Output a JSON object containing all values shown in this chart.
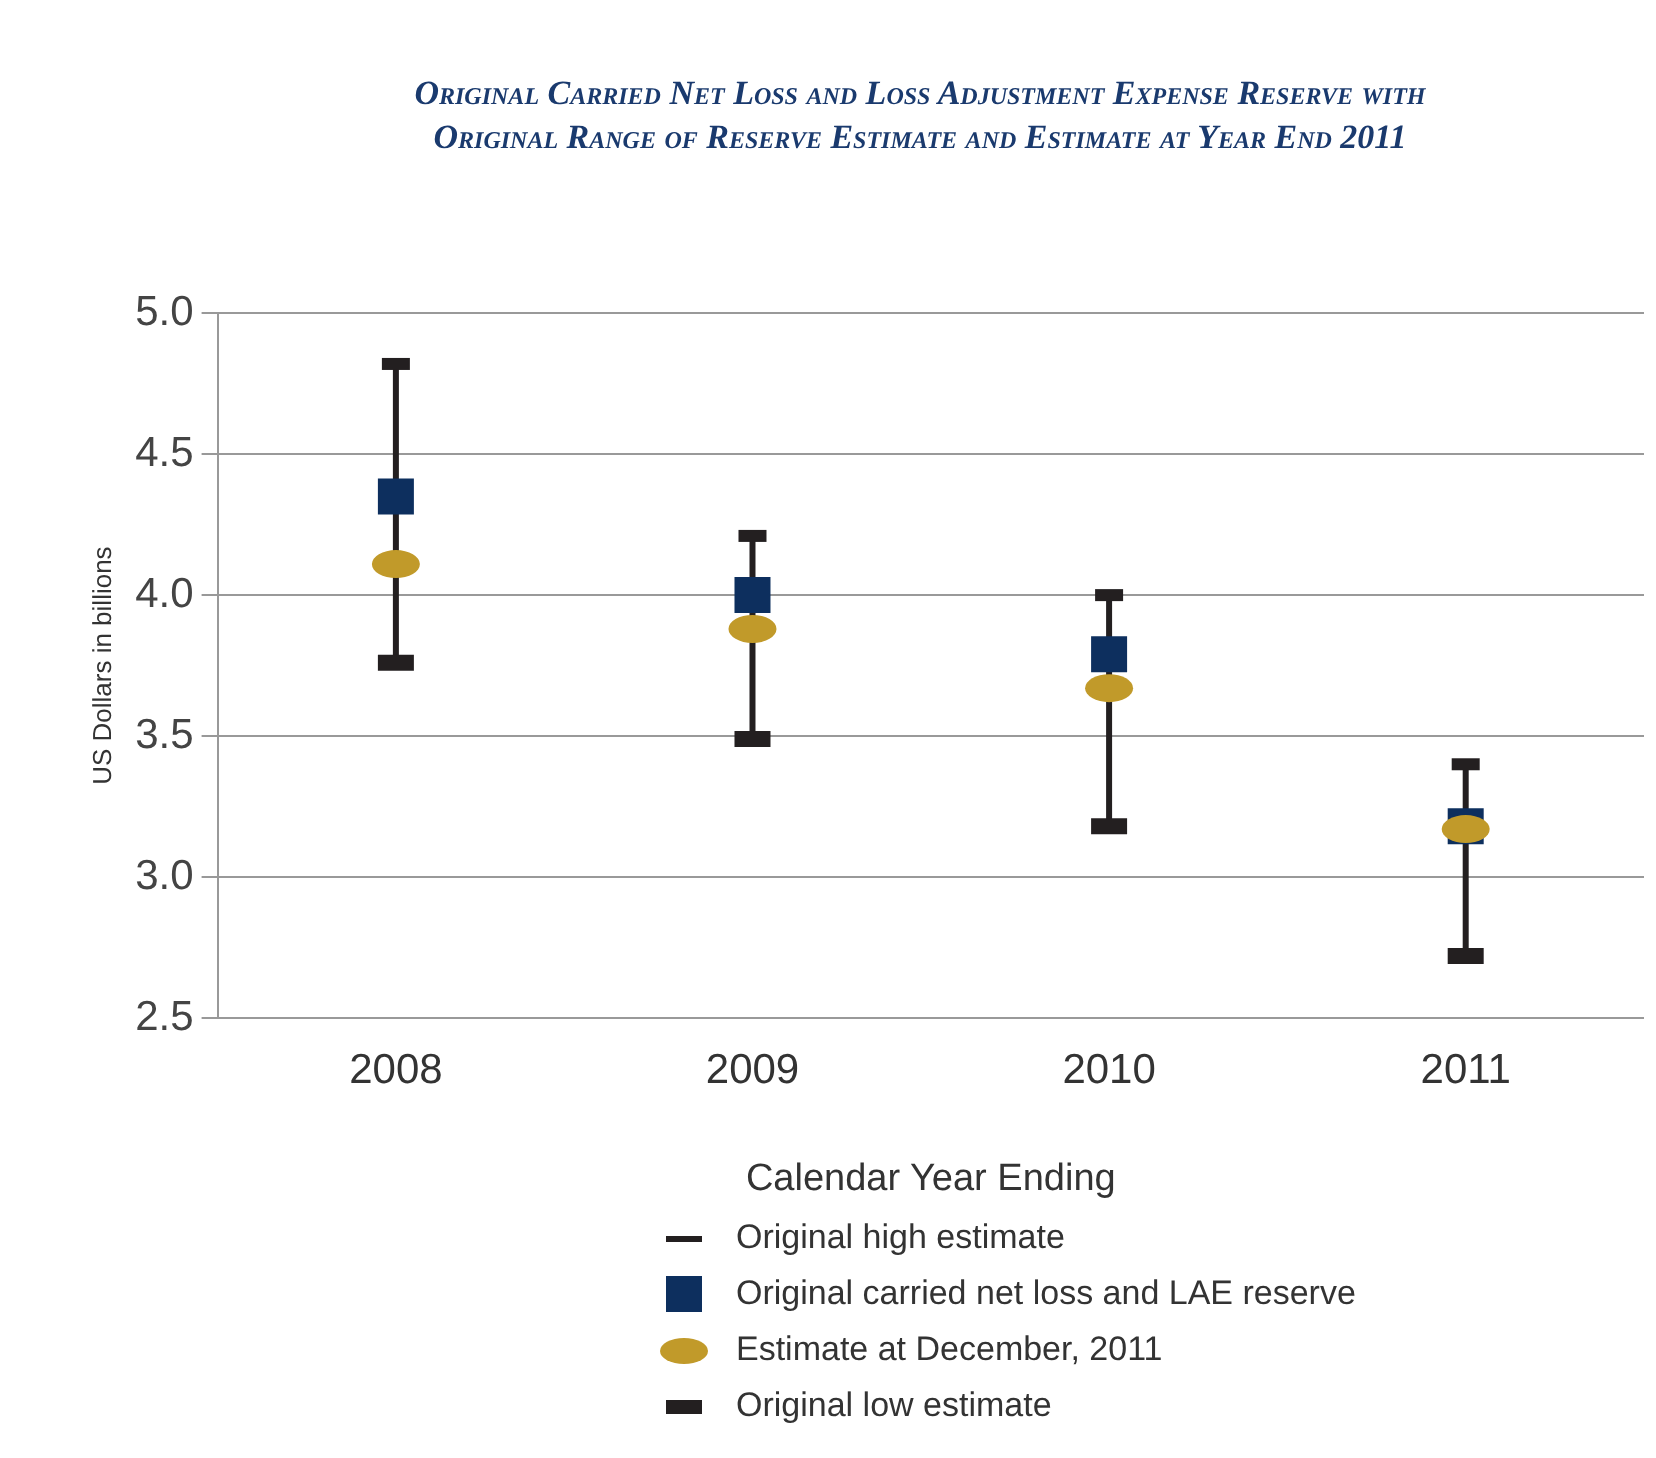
{
  "chart_data": {
    "type": "scatter",
    "title": "Original Carried Net Loss and Loss Adjustment Expense Reserve with Original Range of Reserve Estimate and Estimate at Year End 2011",
    "xlabel": "Calendar Year Ending",
    "ylabel": "US Dollars in billions",
    "categories": [
      "2008",
      "2009",
      "2010",
      "2011"
    ],
    "series": [
      {
        "name": "Original high estimate",
        "color": "#231f20",
        "marker": "square",
        "values": [
          4.82,
          4.21,
          4.0,
          3.4
        ]
      },
      {
        "name": "Original carried net loss and LAE reserve",
        "color": "#0d2f5e",
        "marker": "square",
        "values": [
          4.35,
          4.0,
          3.79,
          3.18
        ]
      },
      {
        "name": "Estimate at December, 2011",
        "color": "#c19a2a",
        "marker": "circle",
        "values": [
          4.11,
          3.88,
          3.67,
          3.17
        ]
      },
      {
        "name": "Original low estimate",
        "color": "#231f20",
        "marker": "square",
        "values": [
          3.76,
          3.49,
          3.18,
          2.72
        ]
      }
    ],
    "ylim": [
      2.5,
      5.0
    ],
    "yticks": [
      2.5,
      {
        "value": 3,
        "label": "3.0"
      },
      3.5,
      {
        "value": 4,
        "label": "4.0"
      },
      4.5,
      {
        "value": 5,
        "label": "5.0"
      }
    ],
    "grid": "y",
    "legend": "bottom"
  }
}
